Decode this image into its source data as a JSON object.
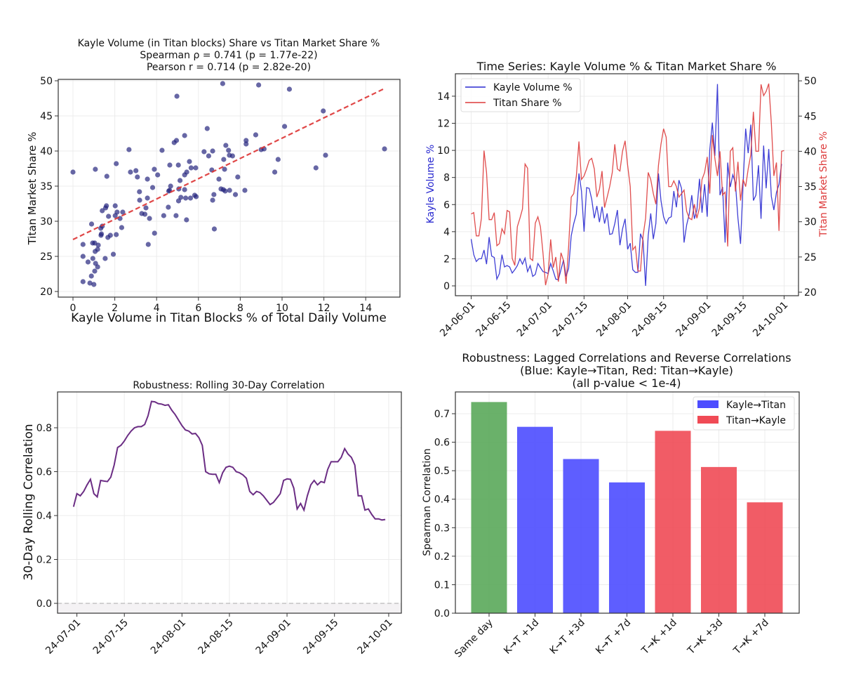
{
  "chart_data": [
    {
      "type": "scatter",
      "title_lines": [
        "Kayle Volume (in Titan blocks) Share vs Titan Market Share %",
        "Spearman ρ = 0.741 (p = 1.77e-22)",
        "Pearson r = 0.714 (p = 2.82e-20)"
      ],
      "xlabel": "Kayle Volume in Titan Blocks % of Total Daily Volume",
      "ylabel": "Titan Market Share %",
      "xlim": [
        -0.7,
        15.8
      ],
      "ylim": [
        19.2,
        50.8
      ],
      "xticks": [
        "0",
        "2",
        "4",
        "6",
        "8",
        "10",
        "12",
        "14"
      ],
      "yticks": [
        "20",
        "25",
        "30",
        "35",
        "40",
        "45",
        "50"
      ],
      "grid": true,
      "point_color": "#1f1f7a",
      "fit_color": "#dd3333",
      "fit_line": {
        "x": [
          0,
          14.9
        ],
        "y": [
          27.4,
          48.9
        ]
      },
      "points": [
        [
          0,
          37.0
        ],
        [
          7.16,
          49.6
        ],
        [
          8.88,
          49.4
        ],
        [
          10.35,
          48.8
        ],
        [
          4.97,
          47.8
        ],
        [
          11.97,
          45.7
        ],
        [
          10.12,
          43.5
        ],
        [
          6.42,
          43.2
        ],
        [
          5.34,
          42.2
        ],
        [
          8.74,
          42.3
        ],
        [
          8.28,
          41.5
        ],
        [
          8.28,
          41.0
        ],
        [
          4.95,
          41.5
        ],
        [
          4.84,
          41.2
        ],
        [
          7.31,
          40.8
        ],
        [
          2.68,
          40.2
        ],
        [
          4.26,
          40.1
        ],
        [
          6.68,
          40.0
        ],
        [
          6.27,
          39.9
        ],
        [
          7.44,
          40.1
        ],
        [
          9.0,
          40.2
        ],
        [
          9.14,
          40.3
        ],
        [
          14.9,
          40.3
        ],
        [
          6.49,
          39.3
        ],
        [
          7.48,
          39.4
        ],
        [
          7.63,
          39.3
        ],
        [
          12.08,
          39.4
        ],
        [
          2.07,
          38.2
        ],
        [
          7.21,
          38.8
        ],
        [
          9.81,
          38.8
        ],
        [
          4.63,
          38.0
        ],
        [
          5.04,
          38.0
        ],
        [
          5.57,
          38.5
        ],
        [
          5.65,
          37.6
        ],
        [
          5.87,
          37.6
        ],
        [
          1.07,
          37.4
        ],
        [
          3.89,
          37.4
        ],
        [
          3.01,
          37.2
        ],
        [
          2.75,
          37.0
        ],
        [
          11.62,
          37.6
        ],
        [
          9.65,
          37.0
        ],
        [
          6.64,
          37.3
        ],
        [
          7.25,
          37.4
        ],
        [
          5.44,
          37.0
        ],
        [
          1.62,
          36.4
        ],
        [
          3.08,
          36.3
        ],
        [
          4.05,
          36.6
        ],
        [
          5.34,
          36.6
        ],
        [
          3.56,
          36.0
        ],
        [
          6.98,
          36.0
        ],
        [
          7.88,
          36.3
        ],
        [
          5.12,
          35.8
        ],
        [
          4.67,
          35.0
        ],
        [
          3.81,
          34.8
        ],
        [
          3.18,
          34.2
        ],
        [
          4.62,
          34.4
        ],
        [
          4.58,
          34.3
        ],
        [
          5.06,
          34.6
        ],
        [
          5.34,
          34.5
        ],
        [
          7.08,
          34.6
        ],
        [
          7.19,
          34.5
        ],
        [
          7.28,
          34.3
        ],
        [
          7.49,
          34.4
        ],
        [
          8.22,
          34.4
        ],
        [
          3.56,
          33.3
        ],
        [
          5.16,
          33.4
        ],
        [
          5.39,
          33.3
        ],
        [
          5.62,
          33.3
        ],
        [
          5.82,
          33.7
        ],
        [
          5.89,
          33.5
        ],
        [
          6.74,
          33.8
        ],
        [
          7.77,
          33.8
        ],
        [
          3.19,
          33.0
        ],
        [
          5.05,
          32.9
        ],
        [
          6.68,
          33.0
        ],
        [
          1.6,
          32.2
        ],
        [
          2.02,
          32.2
        ],
        [
          1.56,
          31.9
        ],
        [
          3.49,
          31.9
        ],
        [
          4.56,
          32.0
        ],
        [
          1.4,
          31.5
        ],
        [
          2.11,
          31.3
        ],
        [
          2.38,
          31.3
        ],
        [
          3.29,
          31.1
        ],
        [
          3.44,
          31.0
        ],
        [
          1.7,
          30.7
        ],
        [
          2.02,
          30.8
        ],
        [
          2.25,
          30.4
        ],
        [
          3.66,
          30.4
        ],
        [
          4.34,
          30.8
        ],
        [
          4.93,
          30.8
        ],
        [
          5.43,
          30.2
        ],
        [
          0.89,
          29.6
        ],
        [
          1.4,
          29.3
        ],
        [
          1.33,
          29.0
        ],
        [
          2.33,
          29.1
        ],
        [
          6.76,
          28.9
        ],
        [
          1.36,
          28.2
        ],
        [
          1.34,
          28.0
        ],
        [
          1.79,
          28.0
        ],
        [
          2.07,
          28.1
        ],
        [
          3.9,
          28.3
        ],
        [
          1.67,
          27.7
        ],
        [
          0.48,
          26.7
        ],
        [
          0.94,
          26.9
        ],
        [
          1.04,
          26.9
        ],
        [
          1.21,
          26.6
        ],
        [
          3.6,
          26.7
        ],
        [
          1.18,
          26.0
        ],
        [
          1.06,
          25.7
        ],
        [
          0.48,
          25.0
        ],
        [
          1.93,
          25.3
        ],
        [
          0.95,
          24.7
        ],
        [
          1.54,
          24.7
        ],
        [
          0.72,
          24.2
        ],
        [
          1.08,
          24.0
        ],
        [
          1.18,
          23.5
        ],
        [
          1.04,
          22.9
        ],
        [
          0.88,
          22.2
        ],
        [
          0.48,
          21.4
        ],
        [
          0.81,
          21.2
        ],
        [
          1.0,
          21.0
        ]
      ]
    },
    {
      "type": "line",
      "title": "Time Series: Kayle Volume % & Titan Market Share %",
      "start_date": "2024-06-01",
      "ylabel_left": "Kayle Volume %",
      "ylabel_right": "Titan Market Share %",
      "xticks": [
        "24-06-01",
        "24-06-15",
        "24-07-01",
        "24-07-15",
        "24-08-01",
        "24-08-15",
        "24-09-01",
        "24-09-15",
        "24-10-01"
      ],
      "xtick_days": [
        0,
        14,
        30,
        44,
        61,
        75,
        92,
        106,
        122
      ],
      "yticks_left": [
        "0",
        "2",
        "4",
        "6",
        "8",
        "10",
        "12",
        "14"
      ],
      "yticks_right": [
        "20",
        "25",
        "30",
        "35",
        "40",
        "45",
        "50"
      ],
      "legend": {
        "placement": "upper-left",
        "entries": [
          "Kayle Volume %",
          "Titan Share %"
        ]
      },
      "series": [
        {
          "name": "Kayle Volume %",
          "axis": "left",
          "color": "#2a2ad0",
          "values": [
            3.45,
            2.3,
            1.8,
            2.0,
            2.0,
            2.65,
            1.6,
            3.6,
            2.2,
            2.1,
            0.5,
            0.9,
            2.3,
            1.4,
            1.5,
            1.4,
            0.95,
            1.2,
            1.5,
            2.0,
            1.6,
            2.05,
            1.05,
            1.5,
            0.7,
            0.85,
            1.65,
            1.35,
            1.05,
            1.0,
            0.9,
            1.65,
            1.1,
            0.5,
            0.45,
            1.2,
            1.9,
            0.7,
            1.3,
            3.7,
            4.6,
            5.3,
            8.3,
            7.0,
            4.0,
            7.25,
            7.2,
            6.4,
            5.0,
            5.9,
            4.7,
            5.85,
            4.6,
            5.35,
            3.8,
            3.85,
            4.6,
            5.6,
            3.0,
            4.2,
            4.95,
            2.7,
            3.15,
            1.2,
            1.0,
            1.0,
            3.85,
            3.35,
            0.0,
            3.7,
            5.35,
            3.45,
            4.6,
            8.3,
            6.3,
            5.1,
            4.6,
            5.0,
            5.1,
            7.0,
            5.8,
            7.8,
            7.2,
            3.2,
            4.5,
            5.3,
            6.7,
            4.95,
            5.6,
            7.9,
            5.4,
            7.5,
            5.1,
            10.0,
            12.05,
            9.6,
            14.9,
            6.7,
            7.3,
            3.2,
            9.1,
            7.3,
            8.2,
            7.6,
            5.0,
            3.1,
            7.5,
            11.6,
            9.8,
            11.9,
            6.3,
            6.7,
            8.9,
            4.95,
            10.35,
            7.2,
            10.1,
            6.6,
            5.6,
            6.9,
            7.5,
            9.0
          ]
        },
        {
          "name": "Titan Share %",
          "axis": "right",
          "color": "#dd3a3a",
          "values": [
            31.1,
            31.3,
            28,
            28,
            30.5,
            40.1,
            37,
            30.3,
            30.3,
            31.3,
            26.6,
            26.9,
            29,
            28.3,
            31.6,
            31.4,
            24.8,
            23.8,
            29.3,
            30.5,
            31.8,
            38.2,
            37.6,
            24.8,
            24.5,
            29.8,
            30.7,
            29.3,
            25.5,
            21,
            22.6,
            27.5,
            23.5,
            25,
            21.5,
            25.6,
            24.5,
            21.2,
            26.5,
            33.5,
            34,
            36.5,
            41.4,
            36,
            36.5,
            37.5,
            38.7,
            39,
            37.5,
            33.5,
            34.6,
            37.2,
            32,
            33.5,
            35,
            37,
            41,
            37.5,
            37.2,
            40,
            41.5,
            38,
            35,
            26,
            26.5,
            23,
            23,
            28,
            30.5,
            37,
            36,
            34,
            32.5,
            38,
            41,
            43.2,
            42,
            35,
            35,
            35.8,
            35,
            33.5,
            34,
            34.5,
            31.5,
            30.5,
            30.3,
            32.5,
            30.5,
            32,
            36,
            37,
            39.2,
            34,
            42.3,
            39,
            36.5,
            40,
            33.8,
            34.2,
            26.5,
            40,
            40.5,
            34.3,
            38.5,
            33,
            36,
            35,
            37.5,
            39.5,
            45.6,
            40,
            40,
            49.5,
            47.9,
            48.5,
            49.6,
            44,
            36.5,
            38.4,
            28.7,
            40,
            40.1
          ]
        }
      ]
    },
    {
      "type": "line",
      "title": "Robustness: Rolling 30-Day Correlation",
      "ylabel": "30-Day Rolling Correlation",
      "start_date": "2024-06-30",
      "xticks": [
        "24-07-01",
        "24-07-15",
        "24-08-01",
        "24-08-15",
        "24-09-01",
        "24-09-15",
        "24-10-01"
      ],
      "xtick_days": [
        1,
        15,
        32,
        46,
        63,
        77,
        93
      ],
      "yticks": [
        "0.0",
        "0.2",
        "0.4",
        "0.6",
        "0.8"
      ],
      "ylim": [
        -0.04,
        0.96
      ],
      "line_color": "#6b2d84",
      "reference_line": 0.0,
      "values": [
        0.44,
        0.5,
        0.49,
        0.51,
        0.54,
        0.565,
        0.5,
        0.485,
        0.56,
        0.557,
        0.555,
        0.575,
        0.63,
        0.71,
        0.72,
        0.74,
        0.765,
        0.785,
        0.8,
        0.805,
        0.805,
        0.815,
        0.855,
        0.92,
        0.918,
        0.91,
        0.908,
        0.902,
        0.905,
        0.88,
        0.86,
        0.835,
        0.81,
        0.79,
        0.785,
        0.772,
        0.774,
        0.755,
        0.72,
        0.6,
        0.59,
        0.588,
        0.588,
        0.55,
        0.595,
        0.62,
        0.625,
        0.62,
        0.6,
        0.595,
        0.585,
        0.57,
        0.51,
        0.495,
        0.51,
        0.505,
        0.49,
        0.47,
        0.45,
        0.46,
        0.48,
        0.5,
        0.56,
        0.567,
        0.565,
        0.525,
        0.43,
        0.455,
        0.425,
        0.49,
        0.54,
        0.56,
        0.54,
        0.555,
        0.55,
        0.61,
        0.645,
        0.645,
        0.645,
        0.665,
        0.705,
        0.68,
        0.665,
        0.63,
        0.49,
        0.49,
        0.425,
        0.43,
        0.405,
        0.385,
        0.385,
        0.38,
        0.382
      ]
    },
    {
      "type": "bar",
      "title_lines": [
        "Robustness: Lagged Correlations and Reverse Correlations",
        "(Blue: Kayle→Titan, Red: Titan→Kayle)",
        "(all p-value < 1e-4)"
      ],
      "ylabel": "Spearman Correlation",
      "categories": [
        "Same day",
        "K→T +1d",
        "K→T +3d",
        "K→T +7d",
        "T→K +1d",
        "T→K +3d",
        "T→K +7d"
      ],
      "values": [
        0.741,
        0.654,
        0.541,
        0.459,
        0.64,
        0.513,
        0.389
      ],
      "bar_colors": [
        "#5aa85a",
        "#4d4dff",
        "#4d4dff",
        "#4d4dff",
        "#f04a55",
        "#f04a55",
        "#f04a55"
      ],
      "yticks": [
        "0.0",
        "0.1",
        "0.2",
        "0.3",
        "0.4",
        "0.5",
        "0.6",
        "0.7"
      ],
      "legend": {
        "placement": "upper-right",
        "entries": [
          {
            "label": "Kayle→Titan",
            "color": "#4d4dff"
          },
          {
            "label": "Titan→Kayle",
            "color": "#f04a55"
          }
        ]
      }
    }
  ]
}
